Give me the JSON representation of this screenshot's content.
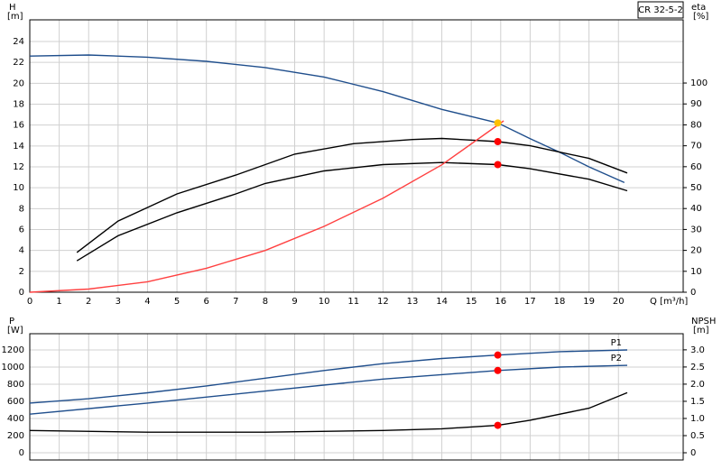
{
  "chart_data": [
    {
      "type": "line",
      "title": "CR 32-5-2",
      "xlabel": "Q [m³/h]",
      "xlim": [
        0,
        22.2
      ],
      "xticks": [
        0,
        1,
        2,
        3,
        4,
        5,
        6,
        7,
        8,
        9,
        10,
        11,
        12,
        13,
        14,
        15,
        16,
        17,
        18,
        19,
        20
      ],
      "ylabel": "H",
      "yunit": "[m]",
      "ylim": [
        0,
        26.07
      ],
      "yticks": [
        0,
        2,
        4,
        6,
        8,
        10,
        12,
        14,
        16,
        18,
        20,
        22,
        24
      ],
      "y2label": "eta",
      "y2unit": "[%]",
      "y2lim": [
        0,
        130.2
      ],
      "y2ticks": [
        0,
        10,
        20,
        30,
        40,
        50,
        60,
        70,
        80,
        90,
        100
      ],
      "grid": true,
      "series": [
        {
          "color": "#1f4e8c",
          "axis": "y",
          "x": [
            0,
            2,
            4,
            6,
            8,
            10,
            12,
            14,
            15.9,
            17,
            18,
            19,
            20.2
          ],
          "values": [
            22.6,
            22.7,
            22.5,
            22.1,
            21.5,
            20.6,
            19.2,
            17.5,
            16.2,
            14.7,
            13.4,
            12.0,
            10.5
          ]
        },
        {
          "color": "#000000",
          "axis": "y2",
          "x": [
            1.6,
            3,
            5,
            7,
            9,
            11,
            13,
            14,
            15.9,
            17,
            19,
            20.3
          ],
          "values": [
            19,
            34,
            47,
            56,
            66,
            71,
            73,
            73.5,
            72,
            70,
            64,
            57
          ]
        },
        {
          "color": "#000000",
          "axis": "y2",
          "x": [
            1.6,
            3,
            5,
            7,
            8,
            10,
            12,
            14,
            15.9,
            17,
            19,
            20.3
          ],
          "values": [
            15,
            27,
            38,
            47,
            52,
            58,
            61,
            62,
            61,
            59,
            54,
            48.5
          ]
        },
        {
          "color": "#ff4040",
          "axis": "y",
          "x": [
            0,
            2,
            4,
            6,
            8,
            10,
            12,
            14,
            16.1
          ],
          "values": [
            0,
            0.3,
            1.0,
            2.3,
            4.0,
            6.3,
            9.0,
            12.2,
            16.4
          ]
        }
      ],
      "markers": [
        {
          "x": 15.9,
          "y": 16.2,
          "axis": "y",
          "color": "#ffc000"
        },
        {
          "x": 15.9,
          "y": 72,
          "axis": "y2",
          "color": "#ff0000"
        },
        {
          "x": 15.9,
          "y": 61,
          "axis": "y2",
          "color": "#ff0000"
        }
      ]
    },
    {
      "type": "line",
      "xlim": [
        0,
        22.2
      ],
      "ylabel": "P",
      "yunit": "[W]",
      "ylim": [
        -84,
        1389
      ],
      "yticks": [
        0,
        200,
        400,
        600,
        800,
        1000,
        1200
      ],
      "y2label": "NPSH",
      "y2unit": "[m]",
      "y2lim": [
        -0.21,
        3.47
      ],
      "y2ticks": [
        0,
        0.5,
        {
          "value": 1,
          "label": "1.0"
        },
        1.5,
        {
          "value": 2,
          "label": "2.0"
        },
        2.5,
        {
          "value": 3,
          "label": "3.0"
        }
      ],
      "grid": true,
      "series": [
        {
          "name": "P1",
          "color": "#1f4e8c",
          "axis": "y",
          "x": [
            0,
            2,
            4,
            6,
            8,
            10,
            12,
            14,
            15.9,
            18,
            20.3
          ],
          "values": [
            580,
            630,
            700,
            780,
            870,
            960,
            1040,
            1100,
            1140,
            1180,
            1200
          ]
        },
        {
          "name": "P2",
          "color": "#1f4e8c",
          "axis": "y",
          "x": [
            0,
            4,
            8,
            12,
            15.9,
            18,
            20.3
          ],
          "values": [
            450,
            580,
            720,
            860,
            960,
            1000,
            1020
          ]
        },
        {
          "color": "#000000",
          "axis": "y2",
          "x": [
            0,
            4,
            8,
            12,
            14,
            15.9,
            17,
            19,
            20.3
          ],
          "values": [
            0.65,
            0.6,
            0.6,
            0.65,
            0.7,
            0.8,
            0.95,
            1.3,
            1.75
          ]
        }
      ],
      "markers": [
        {
          "x": 15.9,
          "y": 1140,
          "axis": "y",
          "color": "#ff0000"
        },
        {
          "x": 15.9,
          "y": 960,
          "axis": "y",
          "color": "#ff0000"
        },
        {
          "x": 15.9,
          "y": 0.8,
          "axis": "y2",
          "color": "#ff0000"
        }
      ]
    }
  ]
}
